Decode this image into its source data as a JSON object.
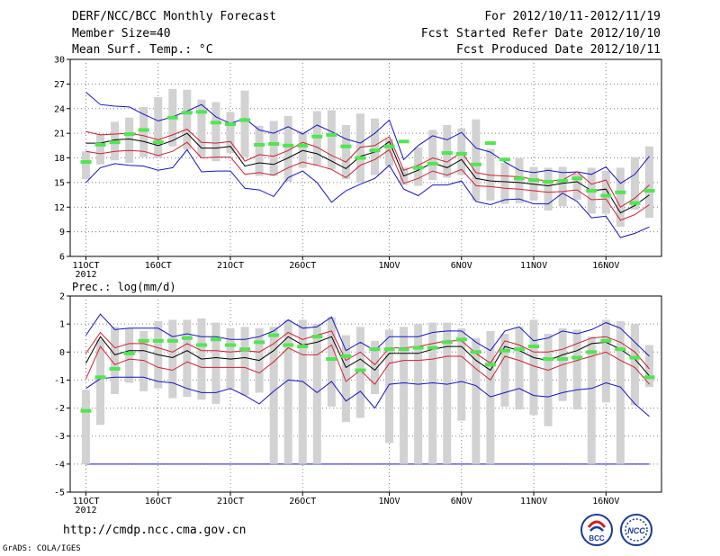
{
  "header": {
    "title": "DERF/NCC/BCC Monthly Forecast",
    "member_size": "Member Size=40",
    "variable1": "Mean Surf. Temp.: °C",
    "forecast_period": "For 2012/10/11-2012/11/19",
    "fcst_started": "Fcst Started Refer Date 2012/10/10",
    "fcst_produced": "Fcst Produced Date 2012/10/11"
  },
  "footer": {
    "url": "http://cmdp.ncc.cma.gov.cn",
    "credit": "GrADS: COLA/IGES",
    "logo_left_text": "BCC",
    "logo_right_text": "NCC"
  },
  "colors": {
    "max_line": "#1414c8",
    "min_line": "#1414c8",
    "std_lines": "#d21e32",
    "mean_line": "#000000",
    "climatology": "#50e650",
    "box": "#d2d2d2"
  },
  "chart_data": [
    {
      "type": "line",
      "title": "Mean Surf. Temp.: °C",
      "x_tick_labels": [
        "11OCT",
        "16OCT",
        "21OCT",
        "26OCT",
        "1NOV",
        "6NOV",
        "11NOV",
        "16NOV"
      ],
      "x_tick_days": [
        1,
        6,
        11,
        16,
        22,
        27,
        32,
        37
      ],
      "year_label": "2012",
      "ylim": [
        6,
        30
      ],
      "y_ticks": [
        6,
        9,
        12,
        15,
        18,
        21,
        24,
        27,
        30
      ],
      "days": [
        1,
        2,
        3,
        4,
        5,
        6,
        7,
        8,
        9,
        10,
        11,
        12,
        13,
        14,
        15,
        16,
        17,
        18,
        19,
        20,
        21,
        22,
        23,
        24,
        25,
        26,
        27,
        28,
        29,
        30,
        31,
        32,
        33,
        34,
        35,
        36,
        37,
        38,
        39,
        40
      ],
      "series": [
        {
          "name": "max",
          "values": [
            26.0,
            24.5,
            24.3,
            24.2,
            23.3,
            22.5,
            23.0,
            23.7,
            24.5,
            23.0,
            22.2,
            22.8,
            21.4,
            21.0,
            21.8,
            20.9,
            22.0,
            21.2,
            20.3,
            19.8,
            21.0,
            22.6,
            17.8,
            19.5,
            20.7,
            20.2,
            21.1,
            19.2,
            18.7,
            17.5,
            16.5,
            16.2,
            16.5,
            16.2,
            16.3,
            16.0,
            16.9,
            14.9,
            16.0,
            18.2
          ]
        },
        {
          "name": "std_upper",
          "values": [
            21.2,
            20.8,
            20.9,
            21.0,
            20.7,
            20.2,
            20.8,
            21.5,
            19.9,
            19.8,
            20.0,
            17.6,
            18.4,
            18.2,
            18.9,
            19.9,
            19.3,
            18.3,
            17.5,
            19.3,
            19.5,
            20.6,
            16.5,
            17.1,
            18.0,
            17.5,
            18.7,
            16.2,
            15.9,
            15.8,
            15.7,
            15.4,
            15.2,
            15.3,
            16.3,
            14.8,
            15.3,
            12.0,
            13.1,
            14.7
          ]
        },
        {
          "name": "mean",
          "values": [
            19.8,
            19.8,
            20.2,
            20.3,
            20.0,
            19.5,
            20.1,
            21.0,
            19.2,
            19.2,
            19.4,
            17.0,
            17.4,
            17.2,
            18.0,
            18.9,
            18.5,
            17.6,
            16.7,
            18.2,
            18.7,
            20.0,
            15.8,
            16.5,
            17.4,
            16.8,
            17.8,
            15.5,
            15.2,
            15.1,
            15.0,
            14.8,
            14.6,
            14.9,
            15.1,
            14.0,
            14.2,
            11.3,
            12.2,
            13.5
          ]
        },
        {
          "name": "std_lower",
          "values": [
            18.8,
            18.5,
            18.8,
            18.9,
            18.8,
            18.3,
            18.8,
            19.9,
            18.0,
            18.1,
            18.1,
            16.0,
            16.2,
            15.9,
            16.8,
            17.5,
            17.1,
            16.6,
            15.6,
            17.1,
            17.8,
            19.0,
            14.9,
            15.5,
            16.4,
            15.9,
            16.6,
            14.6,
            14.5,
            14.3,
            14.2,
            14.0,
            13.8,
            13.9,
            14.1,
            12.9,
            13.0,
            10.4,
            11.1,
            12.3
          ]
        },
        {
          "name": "min",
          "values": [
            15.0,
            16.8,
            17.3,
            17.1,
            17.0,
            16.5,
            16.8,
            19.0,
            16.3,
            16.4,
            16.4,
            14.3,
            14.1,
            13.3,
            15.6,
            16.4,
            15.0,
            12.6,
            14.0,
            14.8,
            15.5,
            17.1,
            14.2,
            13.4,
            14.7,
            14.7,
            15.2,
            12.7,
            12.3,
            12.9,
            13.0,
            12.4,
            12.4,
            13.7,
            12.7,
            10.7,
            10.9,
            8.3,
            8.8,
            9.6
          ]
        },
        {
          "name": "climatology",
          "values": [
            17.5,
            19.6,
            19.9,
            20.9,
            21.4,
            19.9,
            22.9,
            23.5,
            23.6,
            22.3,
            22.1,
            22.6,
            19.6,
            19.7,
            19.5,
            19.5,
            20.6,
            20.8,
            19.4,
            18.0,
            18.9,
            19.4,
            20.0,
            16.8,
            17.3,
            18.6,
            18.5,
            17.2,
            19.8,
            17.8,
            15.5,
            15.3,
            15.1,
            15.2,
            15.5,
            14.0,
            13.4,
            13.8,
            12.5,
            14.0
          ]
        },
        {
          "name": "box_top",
          "values": [
            18.8,
            20.9,
            22.4,
            22.9,
            24.2,
            25.4,
            26.4,
            26.3,
            25.1,
            24.8,
            23.6,
            26.2,
            21.9,
            22.5,
            23.1,
            21.2,
            23.7,
            23.8,
            22.0,
            23.4,
            22.8,
            20.3,
            16.8,
            19.3,
            21.4,
            22.0,
            21.6,
            22.7,
            19.1,
            17.4,
            18.0,
            16.9,
            16.8,
            16.9,
            16.1,
            16.8,
            16.4,
            16.8,
            18.1,
            19.4
          ]
        },
        {
          "name": "box_bottom",
          "values": [
            15.4,
            17.2,
            17.7,
            17.4,
            18.1,
            18.0,
            19.4,
            19.0,
            18.1,
            17.6,
            18.6,
            18.1,
            15.8,
            15.8,
            15.1,
            16.8,
            17.1,
            16.6,
            15.4,
            15.0,
            15.9,
            17.0,
            14.7,
            14.6,
            15.3,
            15.6,
            15.9,
            12.8,
            12.8,
            12.4,
            12.5,
            12.8,
            11.6,
            12.1,
            12.9,
            11.2,
            11.2,
            9.6,
            11.7,
            10.7
          ]
        }
      ]
    },
    {
      "type": "line",
      "title": "Prec.: log(mm/d)",
      "x_tick_labels": [
        "11OCT",
        "16OCT",
        "21OCT",
        "26OCT",
        "1NOV",
        "6NOV",
        "11NOV",
        "16NOV"
      ],
      "x_tick_days": [
        1,
        6,
        11,
        16,
        22,
        27,
        32,
        37
      ],
      "year_label": "2012",
      "ylim": [
        -5,
        2
      ],
      "y_ticks": [
        -5,
        -4,
        -3,
        -2,
        -1,
        0,
        1,
        2
      ],
      "floor_value": -4,
      "days": [
        1,
        2,
        3,
        4,
        5,
        6,
        7,
        8,
        9,
        10,
        11,
        12,
        13,
        14,
        15,
        16,
        17,
        18,
        19,
        20,
        21,
        22,
        23,
        24,
        25,
        26,
        27,
        28,
        29,
        30,
        31,
        32,
        33,
        34,
        35,
        36,
        37,
        38,
        39,
        40
      ],
      "series": [
        {
          "name": "max",
          "values": [
            0.6,
            1.35,
            0.8,
            0.85,
            0.85,
            0.85,
            0.55,
            0.65,
            0.55,
            0.55,
            0.45,
            0.45,
            0.55,
            0.75,
            1.15,
            0.85,
            0.9,
            1.25,
            0.05,
            0.35,
            0.05,
            0.55,
            0.55,
            0.55,
            0.7,
            0.75,
            0.75,
            0.35,
            0.05,
            0.75,
            0.9,
            0.4,
            0.5,
            0.75,
            0.65,
            0.8,
            1.05,
            0.85,
            0.35,
            -0.15
          ]
        },
        {
          "name": "std_upper",
          "values": [
            -0.05,
            0.7,
            0.15,
            0.3,
            0.3,
            0.15,
            0.0,
            0.3,
            0.05,
            0.05,
            0.0,
            0.05,
            0.0,
            0.3,
            0.7,
            0.45,
            0.6,
            0.75,
            -0.3,
            0.0,
            -0.45,
            0.15,
            0.15,
            0.2,
            0.3,
            0.4,
            0.4,
            -0.05,
            -0.4,
            0.4,
            0.25,
            0.0,
            0.0,
            0.1,
            0.3,
            0.5,
            0.55,
            0.35,
            0.0,
            -0.6
          ]
        },
        {
          "name": "mean",
          "values": [
            -0.4,
            0.55,
            -0.1,
            0.05,
            0.05,
            -0.1,
            -0.2,
            0.05,
            -0.25,
            -0.2,
            -0.25,
            -0.2,
            -0.3,
            0.05,
            0.55,
            0.25,
            0.35,
            0.55,
            -0.55,
            -0.25,
            -0.65,
            -0.05,
            -0.05,
            -0.05,
            0.1,
            0.2,
            0.2,
            -0.3,
            -0.65,
            0.2,
            0.05,
            -0.2,
            -0.3,
            -0.1,
            0.05,
            0.3,
            0.35,
            0.1,
            -0.25,
            -0.85
          ]
        },
        {
          "name": "std_lower",
          "values": [
            -0.95,
            0.2,
            -0.45,
            -0.25,
            -0.3,
            -0.55,
            -0.65,
            -0.35,
            -0.55,
            -0.55,
            -0.55,
            -0.55,
            -0.75,
            -0.35,
            0.15,
            -0.1,
            -0.1,
            0.25,
            -1.05,
            -0.65,
            -1.15,
            -0.4,
            -0.3,
            -0.3,
            -0.25,
            -0.15,
            -0.15,
            -0.6,
            -1.0,
            -0.15,
            -0.3,
            -0.5,
            -0.65,
            -0.45,
            -0.3,
            -0.15,
            0.0,
            -0.3,
            -0.55,
            -1.15
          ]
        },
        {
          "name": "min",
          "values": [
            -1.3,
            -0.95,
            -0.9,
            -0.9,
            -0.9,
            -1.05,
            -1.1,
            -1.3,
            -1.45,
            -1.45,
            -1.3,
            -1.55,
            -1.85,
            -1.4,
            -1.0,
            -1.05,
            -1.45,
            -1.05,
            -1.75,
            -1.4,
            -2.0,
            -1.15,
            -1.1,
            -1.15,
            -1.1,
            -1.15,
            -1.05,
            -1.2,
            -1.6,
            -1.45,
            -1.3,
            -1.55,
            -1.6,
            -1.45,
            -1.35,
            -1.3,
            -1.1,
            -1.25,
            -1.85,
            -2.3
          ]
        },
        {
          "name": "climatology",
          "values": [
            -2.1,
            -0.9,
            -0.6,
            -0.05,
            0.4,
            0.4,
            0.4,
            0.5,
            0.25,
            0.45,
            0.25,
            0.1,
            0.35,
            0.6,
            0.25,
            0.2,
            0.55,
            -0.25,
            -0.15,
            -0.65,
            0.1,
            0.1,
            0.1,
            0.15,
            0.15,
            0.35,
            0.45,
            0.0,
            -0.45,
            0.05,
            0.1,
            0.2,
            -0.25,
            -0.25,
            -0.2,
            0.0,
            0.4,
            0.1,
            -0.2,
            -0.9
          ]
        },
        {
          "name": "box_top",
          "values": [
            -1.35,
            0.45,
            0.9,
            0.85,
            0.75,
            1.1,
            1.15,
            1.15,
            1.2,
            1.05,
            0.85,
            0.9,
            0.85,
            0.9,
            1.15,
            1.15,
            1.0,
            1.25,
            0.6,
            0.9,
            0.4,
            0.8,
            0.9,
            1.0,
            1.05,
            1.05,
            0.85,
            0.5,
            0.75,
            0.65,
            0.9,
            1.15,
            0.65,
            0.85,
            0.8,
            0.55,
            1.15,
            1.1,
            1.0,
            0.25
          ]
        },
        {
          "name": "box_bottom",
          "values": [
            -4.0,
            -2.6,
            -1.5,
            -1.1,
            -1.4,
            -1.3,
            -1.65,
            -1.6,
            -1.7,
            -1.85,
            -1.3,
            -1.55,
            -1.45,
            -4.0,
            -4.0,
            -4.0,
            -4.0,
            -1.95,
            -2.5,
            -2.35,
            -1.5,
            -3.25,
            -4.0,
            -4.0,
            -4.0,
            -4.0,
            -2.45,
            -4.0,
            -4.0,
            -1.95,
            -2.05,
            -2.25,
            -2.65,
            -1.75,
            -2.05,
            -4.0,
            -1.8,
            -4.0,
            -1.9,
            -1.25
          ]
        }
      ]
    }
  ]
}
